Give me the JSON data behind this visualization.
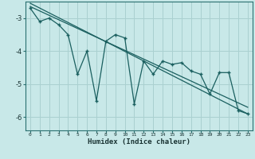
{
  "xlabel": "Humidex (Indice chaleur)",
  "x": [
    0,
    1,
    2,
    3,
    4,
    5,
    6,
    7,
    8,
    9,
    10,
    11,
    12,
    13,
    14,
    15,
    16,
    17,
    18,
    19,
    20,
    21,
    22,
    23
  ],
  "line1": [
    -2.7,
    -3.1,
    -3.0,
    -3.2,
    -3.5,
    -4.7,
    -4.0,
    -5.5,
    -3.7,
    -3.5,
    -3.6,
    -5.6,
    -4.3,
    -4.7,
    -4.3,
    -4.4,
    -4.35,
    -4.6,
    -4.7,
    -5.3,
    -4.65,
    -4.65,
    -5.8,
    -5.9
  ],
  "line2_x": [
    0,
    23
  ],
  "line2_y": [
    -2.55,
    -5.9
  ],
  "line3_x": [
    0,
    23
  ],
  "line3_y": [
    -2.65,
    -5.7
  ],
  "bg_color": "#c8e8e8",
  "line_color": "#1a5f5f",
  "grid_color": "#aad0d0",
  "ylim": [
    -6.4,
    -2.5
  ],
  "xlim": [
    -0.5,
    23.5
  ],
  "yticks": [
    -6,
    -5,
    -4,
    -3
  ],
  "ytick_labels": [
    "-6",
    "-5",
    "-4",
    "-3"
  ]
}
